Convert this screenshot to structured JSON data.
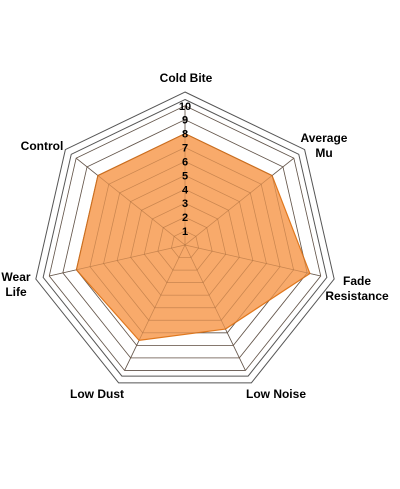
{
  "chart_data": {
    "type": "radar",
    "axes": [
      "Cold Bite",
      "Average\nMu",
      "Fade\nResistance",
      "Low Noise",
      "Low Dust",
      "Wear\nLife",
      "Control"
    ],
    "series": [
      {
        "values": [
          8,
          8,
          9.2,
          6.7,
          7.6,
          8,
          8
        ]
      }
    ],
    "rlim": [
      0,
      10
    ],
    "ticks": [
      1,
      2,
      3,
      4,
      5,
      6,
      7,
      8,
      9,
      10
    ],
    "colors": {
      "fill": "#f7a460",
      "stroke": "#e0781e",
      "grid": "#555555",
      "outer_bg": "#ffffff"
    }
  }
}
